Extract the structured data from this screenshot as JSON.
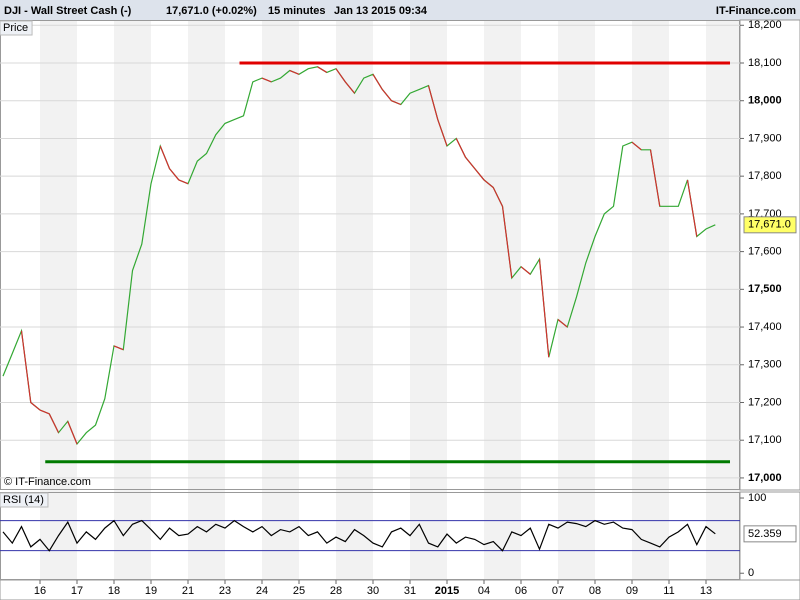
{
  "chart_data": [
    {
      "type": "line",
      "title": "DJI - Wall Street Cash (-)",
      "quote": "17,671.0 (+0.02%)",
      "interval": "15 minutes",
      "timestamp": "Jan 13 2015 09:34",
      "brand": "IT-Finance.com",
      "watermark": "© IT-Finance.com",
      "panel_label": "Price",
      "categories": [
        null,
        null,
        null,
        null,
        "16",
        null,
        null,
        null,
        "17",
        null,
        null,
        null,
        "18",
        null,
        null,
        null,
        "19",
        null,
        null,
        null,
        "21",
        null,
        null,
        null,
        "23",
        null,
        null,
        null,
        "24",
        null,
        null,
        null,
        "25",
        null,
        null,
        null,
        "28",
        null,
        null,
        null,
        "30",
        null,
        null,
        null,
        "31",
        null,
        null,
        null,
        "2015",
        null,
        null,
        null,
        "04",
        null,
        null,
        null,
        "06",
        null,
        null,
        null,
        "07",
        null,
        null,
        null,
        "08",
        null,
        null,
        null,
        "09",
        null,
        null,
        null,
        "11",
        null,
        null,
        null,
        "13",
        null
      ],
      "series": [
        {
          "name": "Price",
          "color": "#33a833",
          "down_color": "#d03030",
          "values": [
            17270,
            17330,
            17390,
            17200,
            17180,
            17170,
            17120,
            17150,
            17090,
            17120,
            17140,
            17210,
            17350,
            17340,
            17550,
            17620,
            17780,
            17880,
            17820,
            17790,
            17780,
            17840,
            17860,
            17910,
            17940,
            17950,
            17960,
            18050,
            18060,
            18050,
            18060,
            18080,
            18070,
            18085,
            18090,
            18075,
            18085,
            18050,
            18020,
            18060,
            18070,
            18030,
            18000,
            17990,
            18020,
            18030,
            18040,
            17950,
            17880,
            17900,
            17850,
            17820,
            17790,
            17770,
            17720,
            17530,
            17560,
            17540,
            17580,
            17320,
            17420,
            17400,
            17480,
            17570,
            17640,
            17700,
            17720,
            17880,
            17890,
            17870,
            17870,
            17720,
            17720,
            17720,
            17790,
            17640,
            17660,
            17671
          ]
        }
      ],
      "last": {
        "value": 17671,
        "label": "17,671.0"
      },
      "levels": [
        {
          "value": 18100,
          "color": "#e00000",
          "from": 26
        },
        {
          "value": 17043,
          "color": "#007a00",
          "from": 5
        }
      ],
      "ylim": [
        16968,
        18214
      ],
      "yticks": [
        {
          "value": 17000,
          "label": "17,000"
        },
        {
          "value": 17100,
          "label": "17,100"
        },
        {
          "value": 17200,
          "label": "17,200"
        },
        {
          "value": 17300,
          "label": "17,300"
        },
        {
          "value": 17400,
          "label": "17,400"
        },
        {
          "value": 17500,
          "label": "17,500"
        },
        {
          "value": 17600,
          "label": "17,600"
        },
        {
          "value": 17700,
          "label": "17,700"
        },
        {
          "value": 17800,
          "label": "17,800"
        },
        {
          "value": 17900,
          "label": "17,900"
        },
        {
          "value": 18000,
          "label": "18,000"
        },
        {
          "value": 18100,
          "label": "18,100"
        },
        {
          "value": 18200,
          "label": "18,200"
        }
      ],
      "bold_ticks": [
        17000,
        17500,
        18000
      ],
      "grid": true
    },
    {
      "type": "line",
      "panel_label": "RSI (14)",
      "series": [
        {
          "name": "RSI (14)",
          "color": "#000000",
          "values": [
            55,
            40,
            62,
            35,
            45,
            30,
            50,
            68,
            40,
            55,
            45,
            60,
            70,
            50,
            65,
            70,
            58,
            45,
            60,
            50,
            52,
            62,
            55,
            65,
            60,
            70,
            62,
            55,
            62,
            50,
            58,
            55,
            62,
            50,
            55,
            40,
            48,
            42,
            58,
            50,
            40,
            35,
            55,
            60,
            50,
            65,
            40,
            35,
            52,
            40,
            48,
            45,
            38,
            42,
            30,
            55,
            50,
            60,
            32,
            65,
            60,
            68,
            66,
            62,
            70,
            65,
            68,
            60,
            58,
            45,
            40,
            35,
            48,
            55,
            65,
            38,
            62,
            52.359
          ]
        }
      ],
      "last": 52.359,
      "levels": [
        {
          "value": 70,
          "color": "#3333aa"
        },
        {
          "value": 30,
          "color": "#3333aa"
        }
      ],
      "ylim": [
        -9,
        108
      ],
      "yticks": [
        0,
        100
      ]
    }
  ]
}
